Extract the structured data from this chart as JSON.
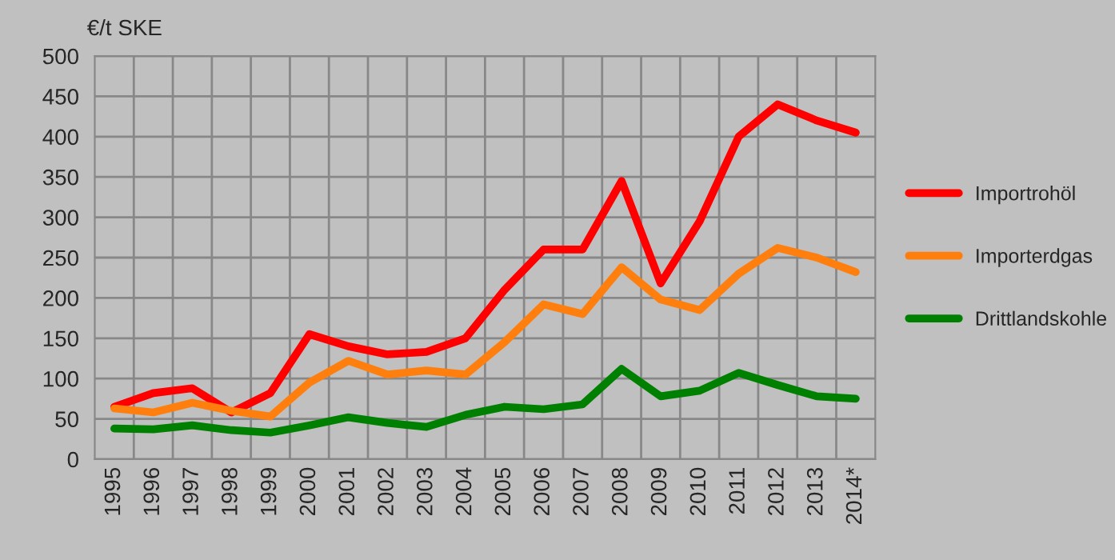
{
  "chart_data": {
    "type": "line",
    "ylabel": "€/t SKE",
    "categories": [
      "1995",
      "1996",
      "1997",
      "1998",
      "1999",
      "2000",
      "2001",
      "2002",
      "2003",
      "2004",
      "2005",
      "2006",
      "2007",
      "2008",
      "2009",
      "2010",
      "2011",
      "2012",
      "2013",
      "2014*"
    ],
    "series": [
      {
        "name": "Importrohöl",
        "color": "#ff0000",
        "values": [
          65,
          82,
          88,
          58,
          82,
          155,
          140,
          130,
          133,
          150,
          210,
          260,
          260,
          345,
          218,
          295,
          400,
          440,
          420,
          405
        ]
      },
      {
        "name": "Importerdgas",
        "color": "#ff7f0e",
        "values": [
          63,
          58,
          70,
          60,
          53,
          95,
          122,
          105,
          110,
          105,
          145,
          192,
          180,
          238,
          198,
          185,
          230,
          262,
          250,
          232
        ]
      },
      {
        "name": "Drittlandskohle",
        "color": "#008000",
        "values": [
          38,
          37,
          42,
          36,
          33,
          42,
          52,
          45,
          40,
          55,
          65,
          62,
          68,
          112,
          78,
          85,
          107,
          92,
          78,
          75
        ]
      }
    ],
    "ylim": [
      0,
      500
    ],
    "yticks": [
      0,
      50,
      100,
      150,
      200,
      250,
      300,
      350,
      400,
      450,
      500
    ],
    "grid": true,
    "legend": "right",
    "marker": "none",
    "line_style": "solid"
  }
}
